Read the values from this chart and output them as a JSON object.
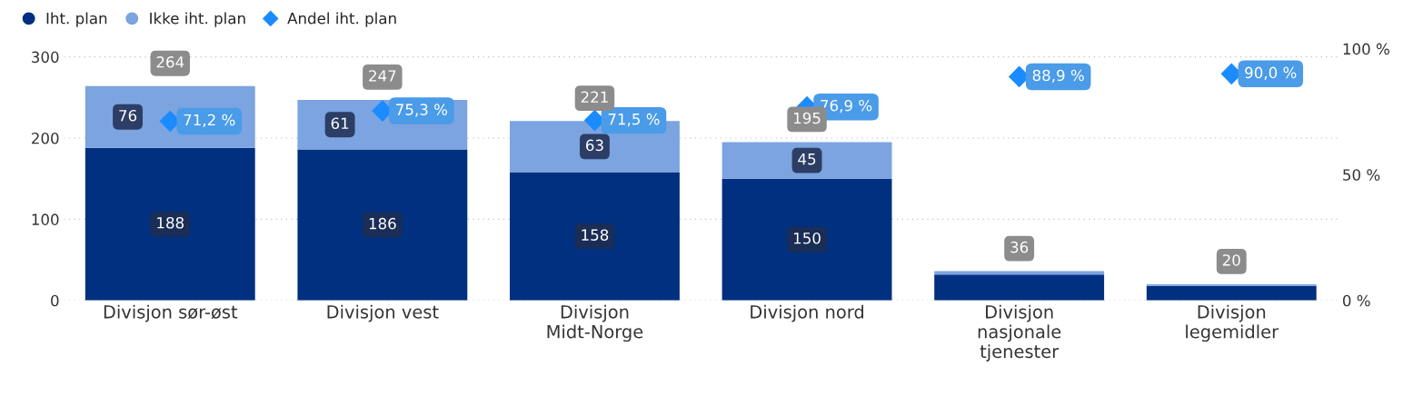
{
  "chart_data": {
    "type": "bar",
    "stacked": true,
    "categories": [
      "Divisjon sør-øst",
      "Divisjon vest",
      "Divisjon Midt-Norge",
      "Divisjon nord",
      "Divisjon nasjonale tjenester",
      "Divisjon legemidler"
    ],
    "series": [
      {
        "name": "Iht. plan",
        "color": "#00307f",
        "values": [
          188,
          186,
          158,
          150,
          32,
          18
        ],
        "value_labels": [
          "188",
          "186",
          "158",
          "150",
          null,
          null
        ]
      },
      {
        "name": "Ikke iht. plan",
        "color": "#7ba4e0",
        "values": [
          76,
          61,
          63,
          45,
          4,
          2
        ],
        "value_labels": [
          "76",
          "61",
          "63",
          "45",
          null,
          null
        ]
      },
      {
        "name": "Andel iht. plan",
        "type": "scatter",
        "axis": "y2",
        "marker": "diamond",
        "color": "#1a8cff",
        "values": [
          71.2,
          75.3,
          71.5,
          76.9,
          88.9,
          90.0
        ],
        "value_labels": [
          "71,2 %",
          "75,3 %",
          "71,5 %",
          "76,9 %",
          "88,9 %",
          "90,0 %"
        ]
      }
    ],
    "totals": [
      "264",
      "247",
      "221",
      "195",
      "36",
      "20"
    ],
    "ylim": [
      0,
      310
    ],
    "yticks": [
      0,
      100,
      200,
      300
    ],
    "y2lim": [
      0,
      100
    ],
    "y2ticks": [
      {
        "value": 0,
        "label": "0 %"
      },
      {
        "value": 50,
        "label": "50 %"
      },
      {
        "value": 100,
        "label": "100 %"
      }
    ],
    "grid": "y",
    "legend": "top left"
  }
}
